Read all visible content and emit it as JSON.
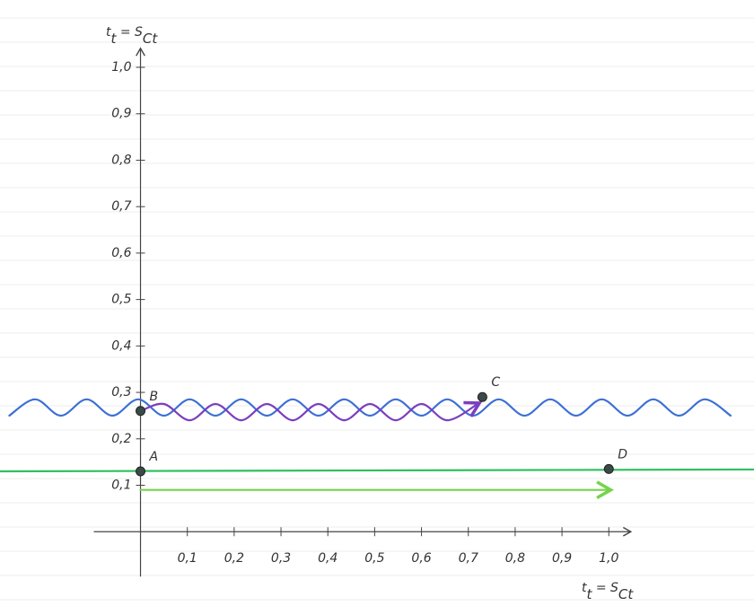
{
  "chart_data": {
    "type": "line",
    "y_label": [
      "t",
      "t",
      " = S",
      "Ct"
    ],
    "x_label": [
      "t",
      "t",
      " = S",
      "Ct"
    ],
    "xlim": [
      -0.3,
      1.31
    ],
    "ylim": [
      -0.16,
      1.145
    ],
    "xticks": [
      {
        "value": 0.1,
        "label": "0,1"
      },
      {
        "value": 0.2,
        "label": "0,2"
      },
      {
        "value": 0.3,
        "label": "0,3"
      },
      {
        "value": 0.4,
        "label": "0,4"
      },
      {
        "value": 0.5,
        "label": "0,5"
      },
      {
        "value": 0.6,
        "label": "0,6"
      },
      {
        "value": 0.7,
        "label": "0,7"
      },
      {
        "value": 0.8,
        "label": "0,8"
      },
      {
        "value": 0.9,
        "label": "0,9"
      },
      {
        "value": 1.0,
        "label": "1,0"
      }
    ],
    "yticks": [
      {
        "value": 0.1,
        "label": "0,1"
      },
      {
        "value": 0.2,
        "label": "0,2"
      },
      {
        "value": 0.3,
        "label": "0,3"
      },
      {
        "value": 0.4,
        "label": "0,4"
      },
      {
        "value": 0.5,
        "label": "0,5"
      },
      {
        "value": 0.6,
        "label": "0,6"
      },
      {
        "value": 0.7,
        "label": "0,7"
      },
      {
        "value": 0.8,
        "label": "0,8"
      },
      {
        "value": 0.9,
        "label": "0,9"
      },
      {
        "value": 1.0,
        "label": "1,0"
      }
    ],
    "series": [
      {
        "color": "#3b6fd4",
        "smooth": true,
        "arrow": false,
        "x": [
          -0.28,
          -0.225,
          -0.17,
          -0.115,
          -0.06,
          -0.005,
          0.05,
          0.105,
          0.16,
          0.215,
          0.27,
          0.325,
          0.38,
          0.435,
          0.49,
          0.545,
          0.6,
          0.655,
          0.71,
          0.765,
          0.82,
          0.875,
          0.93,
          0.985,
          1.04,
          1.095,
          1.15,
          1.205,
          1.26
        ],
        "y": [
          0.25,
          0.285,
          0.25,
          0.285,
          0.25,
          0.285,
          0.25,
          0.285,
          0.25,
          0.285,
          0.25,
          0.285,
          0.25,
          0.285,
          0.25,
          0.285,
          0.25,
          0.285,
          0.25,
          0.285,
          0.25,
          0.285,
          0.25,
          0.285,
          0.25,
          0.285,
          0.25,
          0.285,
          0.25
        ]
      },
      {
        "color": "#7a3fbf",
        "smooth": true,
        "arrow": true,
        "x": [
          0.0,
          0.05,
          0.105,
          0.16,
          0.215,
          0.27,
          0.325,
          0.38,
          0.435,
          0.49,
          0.545,
          0.6,
          0.655,
          0.72
        ],
        "y": [
          0.26,
          0.275,
          0.24,
          0.275,
          0.24,
          0.275,
          0.24,
          0.275,
          0.24,
          0.275,
          0.24,
          0.275,
          0.24,
          0.275
        ]
      },
      {
        "color": "#2fbf5f",
        "smooth": false,
        "arrow": false,
        "x": [
          -0.3,
          1.31
        ],
        "y": [
          0.13,
          0.134
        ]
      },
      {
        "color": "#74d44a",
        "smooth": false,
        "arrow": true,
        "x": [
          0.0,
          1.0
        ],
        "y": [
          0.09,
          0.09
        ]
      }
    ],
    "points": [
      {
        "label": "A",
        "x": 0.0,
        "y": 0.13
      },
      {
        "label": "B",
        "x": 0.0,
        "y": 0.26
      },
      {
        "label": "C",
        "x": 0.73,
        "y": 0.29
      },
      {
        "label": "D",
        "x": 1.0,
        "y": 0.135
      }
    ]
  }
}
